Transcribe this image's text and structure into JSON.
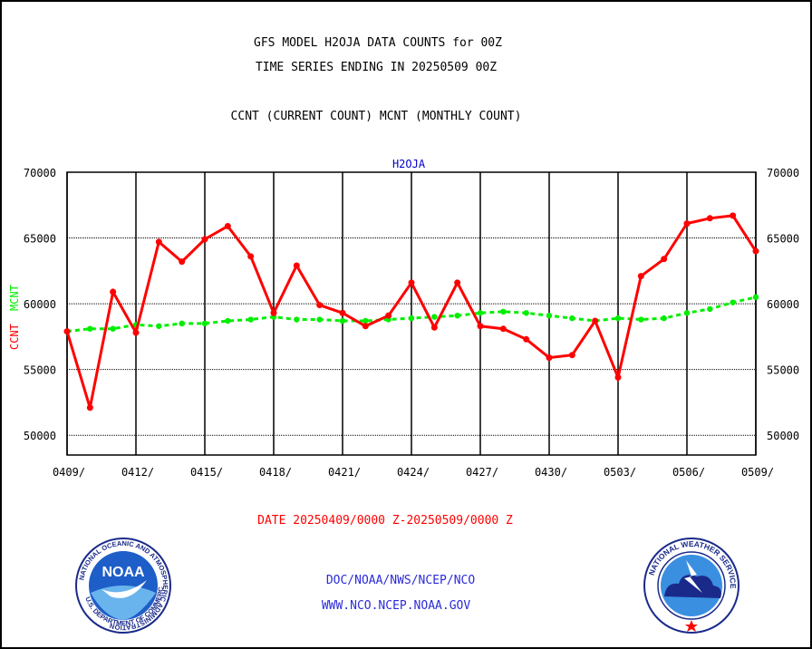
{
  "page": {
    "title_line1": "GFS MODEL H2OJA DATA COUNTS for 00Z",
    "title_line2": "TIME SERIES ENDING IN 20250509 00Z",
    "title_line3": "CCNT (CURRENT COUNT) MCNT (MONTHLY COUNT)",
    "date_range": "DATE 20250409/0000 Z-20250509/0000 Z",
    "credit_line1": "DOC/NOAA/NWS/NCEP/NCO",
    "credit_line2": "WWW.NCO.NCEP.NOAA.GOV",
    "noaa_logo_text": "NOAA",
    "noaa_ring_text": "NATIONAL OCEANIC AND ATMOSPHERIC ADMINISTRATION",
    "noaa_ring_bottom": "U.S. DEPARTMENT OF COMMERCE",
    "nws_ring_text": "NATIONAL WEATHER SERVICE"
  },
  "chart_data": {
    "type": "line",
    "title": "H2OJA",
    "ylabel_ccnt": "CCNT",
    "ylabel_mcnt": "MCNT",
    "xlabel": "",
    "ylim": [
      48500,
      70000
    ],
    "yticks": [
      50000,
      55000,
      60000,
      65000,
      70000
    ],
    "ytick_labels": [
      "50000",
      "55000",
      "60000",
      "65000",
      "70000"
    ],
    "xtick_labels": [
      "0409/",
      "0412/",
      "0415/",
      "0418/",
      "0421/",
      "0424/",
      "0427/",
      "0430/",
      "0503/",
      "0506/",
      "0509/"
    ],
    "xtick_days": [
      0,
      3,
      6,
      9,
      12,
      15,
      18,
      21,
      24,
      27,
      30
    ],
    "grid": true,
    "colors": {
      "ccnt": "#ff0000",
      "mcnt": "#00ee00",
      "title": "#0000cc",
      "grid": "#000000"
    },
    "series": [
      {
        "name": "CCNT",
        "values": [
          57900,
          52100,
          60900,
          57800,
          64700,
          63200,
          64900,
          65900,
          63600,
          59300,
          62900,
          59900,
          59300,
          58300,
          59100,
          61600,
          58200,
          61600,
          58300,
          58100,
          57300,
          55900,
          56100,
          58700,
          54400,
          62100,
          63400,
          66100,
          66500,
          66700,
          64000
        ]
      },
      {
        "name": "MCNT",
        "values": [
          57900,
          58100,
          58100,
          58400,
          58300,
          58500,
          58500,
          58700,
          58800,
          59000,
          58800,
          58800,
          58700,
          58700,
          58800,
          58900,
          59000,
          59100,
          59300,
          59400,
          59300,
          59100,
          58900,
          58700,
          58900,
          58800,
          58900,
          59300,
          59600,
          60100,
          60500
        ]
      }
    ]
  }
}
